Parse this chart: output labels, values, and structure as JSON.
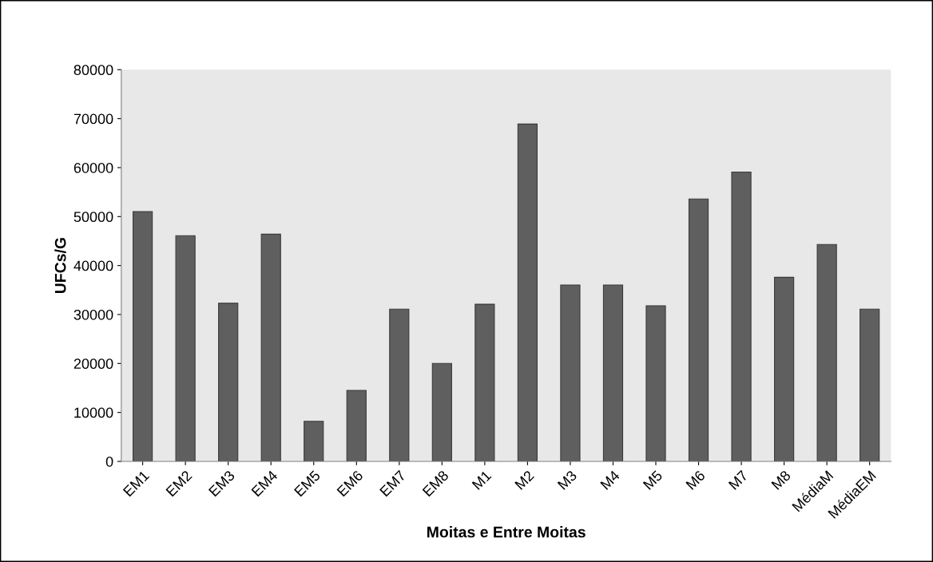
{
  "chart_data": {
    "type": "bar",
    "xlabel": "Moitas e Entre Moitas",
    "ylabel": "UFCs/G",
    "categories": [
      "EM1",
      "EM2",
      "EM3",
      "EM4",
      "EM5",
      "EM6",
      "EM7",
      "EM8",
      "M1",
      "M2",
      "M3",
      "M4",
      "M5",
      "M6",
      "M7",
      "M8",
      "MédiaM",
      "MédiaEM"
    ],
    "values": [
      51000,
      46100,
      32300,
      46400,
      8200,
      14500,
      31100,
      20000,
      32100,
      68900,
      36000,
      36000,
      31800,
      53600,
      59100,
      37600,
      44300,
      31100
    ],
    "color": "#5f5f5f",
    "ylim": [
      0,
      80000
    ],
    "yticks": [
      0,
      10000,
      20000,
      30000,
      40000,
      50000,
      60000,
      70000,
      80000
    ],
    "grid": false,
    "legend": false
  }
}
